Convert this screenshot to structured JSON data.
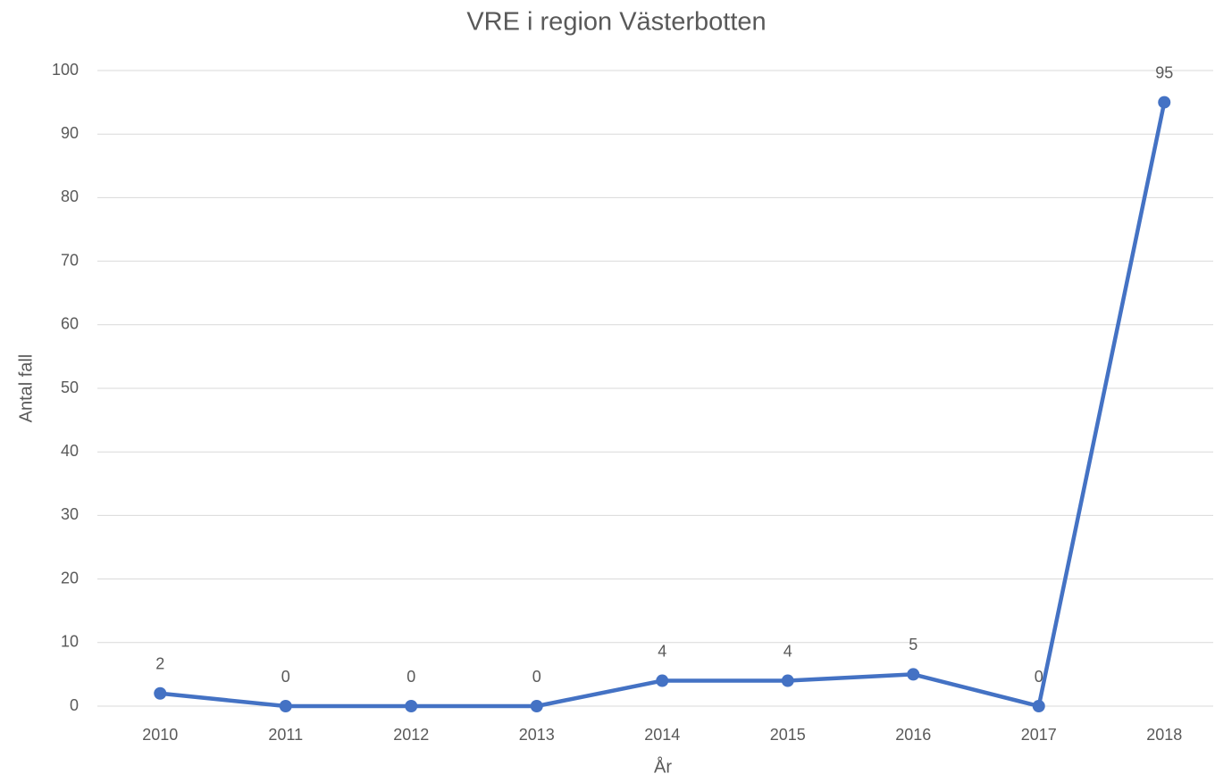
{
  "chart_data": {
    "type": "line",
    "title": "VRE i region Västerbotten",
    "x_label": "År",
    "y_label": "Antal fall",
    "categories": [
      "2010",
      "2011",
      "2012",
      "2013",
      "2014",
      "2015",
      "2016",
      "2017",
      "2018"
    ],
    "values": [
      2,
      0,
      0,
      0,
      4,
      4,
      5,
      0,
      95
    ],
    "color": "#4472c4",
    "ylim": [
      0,
      100
    ],
    "yticks": [
      0,
      10,
      20,
      30,
      40,
      50,
      60,
      70,
      80,
      90,
      100
    ],
    "grid": true
  }
}
